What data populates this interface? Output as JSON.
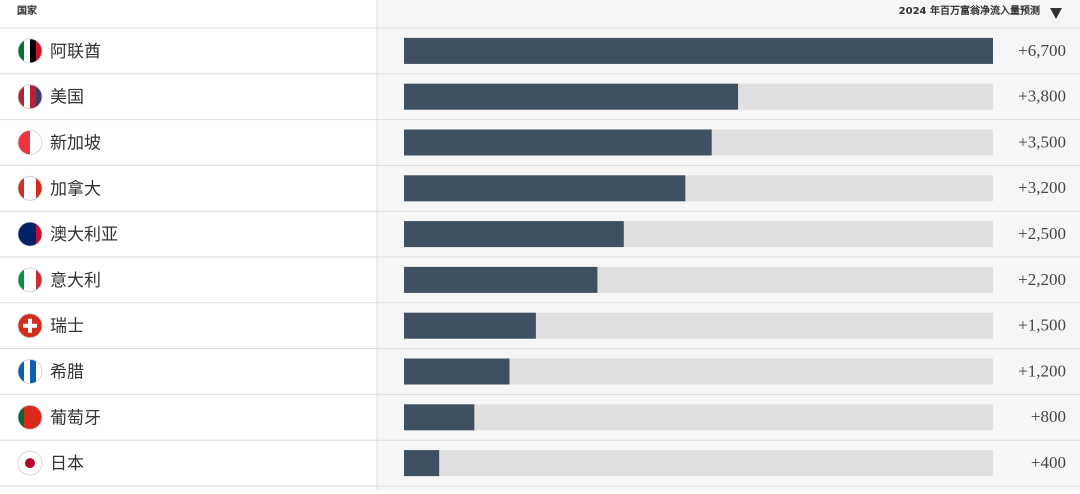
{
  "chart_data": {
    "type": "bar",
    "orientation": "horizontal",
    "header": {
      "category": "国家",
      "value": "2024 年百万富翁净流入量预测"
    },
    "categories": [
      "阿联酋",
      "美国",
      "新加坡",
      "加拿大",
      "澳大利亚",
      "意大利",
      "瑞士",
      "希腊",
      "葡萄牙",
      "日本"
    ],
    "values": [
      6700,
      3800,
      3500,
      3200,
      2500,
      2200,
      1500,
      1200,
      800,
      400
    ],
    "value_labels": [
      "+6,700",
      "+3,800",
      "+3,500",
      "+3,200",
      "+2,500",
      "+2,200",
      "+1,500",
      "+1,200",
      "+800",
      "+400"
    ],
    "color": "#3f5061",
    "track_color": "#e0e0e0",
    "xlim": [
      0,
      6700
    ]
  }
}
